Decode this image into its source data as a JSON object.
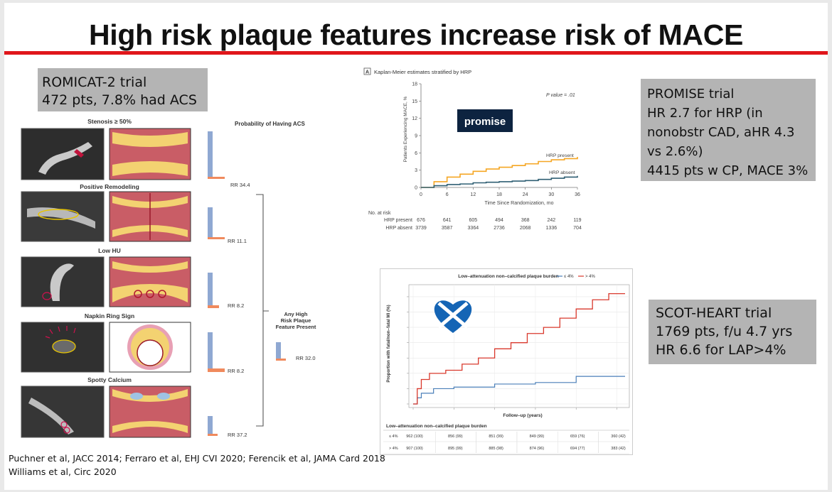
{
  "slide": {
    "title": "High risk plaque features increase risk of MACE",
    "accent_color": "#e0161b"
  },
  "romicat_box": {
    "line1": "ROMICAT-2 trial",
    "line2": "472 pts, 7.8% had ACS"
  },
  "promise_box": {
    "lines": [
      "PROMISE trial",
      "HR 2.7 for HRP (in",
      "nonobstr CAD, aHR 4.3",
      "vs 2.6%)",
      "4415  pts w CP, MACE 3%"
    ]
  },
  "scot_box": {
    "lines": [
      "SCOT-HEART  trial",
      "1769  pts, f/u 4.7 yrs",
      "HR 6.6 for LAP>4%"
    ]
  },
  "romicat_figure": {
    "prob_header": "Probability of Having ACS",
    "rows": [
      {
        "label": "Stenosis ≥ 50%",
        "rr": "RR 34.4"
      },
      {
        "label": "Positive Remodeling",
        "rr": "RR 11.1"
      },
      {
        "label": "Low HU",
        "rr": "RR 8.2"
      },
      {
        "label": "Napkin Ring Sign",
        "rr": "RR 8.2"
      },
      {
        "label": "Spotty Calcium",
        "rr": "RR 37.2"
      }
    ],
    "any_label": [
      "Any High",
      "Risk Plaque",
      "Feature Present"
    ],
    "any_rr": "RR 32.0",
    "bar_color": "#8fa8d2",
    "rr_bar_color": "#f08a5d"
  },
  "promise_chart": {
    "panel": "A",
    "title": "Kaplan-Meier estimates stratified by HRP",
    "ylabel": "Patients Experiencing MACE, %",
    "xlabel": "Time Since Randomization, mo",
    "pvalue": "P value = .01",
    "logo": "promise",
    "yticks": [
      "0",
      "3",
      "6",
      "9",
      "12",
      "15",
      "18"
    ],
    "xticks": [
      "0",
      "6",
      "12",
      "18",
      "24",
      "30",
      "36"
    ],
    "hrp_present_label": "HRP present",
    "hrp_absent_label": "HRP absent",
    "risk_header": "No. at risk",
    "risk_rows": [
      {
        "label": "HRP present",
        "values": [
          "676",
          "641",
          "605",
          "494",
          "368",
          "242",
          "119"
        ]
      },
      {
        "label": "HRP absent",
        "values": [
          "3739",
          "3587",
          "3364",
          "2736",
          "2068",
          "1336",
          "704"
        ]
      }
    ],
    "present_color": "#f5a623",
    "absent_color": "#2f5f73"
  },
  "chart_data": [
    {
      "type": "line",
      "title": "Kaplan-Meier estimates stratified by HRP",
      "xlabel": "Time Since Randomization, mo",
      "ylabel": "Patients Experiencing MACE, %",
      "xlim": [
        0,
        36
      ],
      "ylim": [
        0,
        18
      ],
      "series": [
        {
          "name": "HRP present",
          "x": [
            0,
            3,
            6,
            9,
            12,
            15,
            18,
            21,
            24,
            27,
            30,
            33,
            36
          ],
          "y": [
            0,
            1.0,
            1.8,
            2.3,
            2.8,
            3.2,
            3.5,
            3.8,
            4.1,
            4.5,
            4.8,
            5.0,
            5.3
          ]
        },
        {
          "name": "HRP absent",
          "x": [
            0,
            3,
            6,
            9,
            12,
            15,
            18,
            21,
            24,
            27,
            30,
            33,
            36
          ],
          "y": [
            0,
            0.3,
            0.5,
            0.6,
            0.8,
            0.9,
            1.0,
            1.1,
            1.2,
            1.4,
            1.6,
            1.8,
            2.0
          ]
        }
      ]
    },
    {
      "type": "line",
      "title": "Low-attenuation non-calcified plaque burden",
      "xlabel": "Follow-up (years)",
      "ylabel": "Proportion with fatal/non-fatal MI (%)",
      "xlim": [
        0,
        5.2
      ],
      "ylim": [
        0,
        3.8
      ],
      "series": [
        {
          "name": "≤ 4%",
          "x": [
            0,
            0.1,
            0.2,
            0.5,
            1.0,
            2.0,
            3.0,
            3.8,
            4.0,
            5.2
          ],
          "y": [
            0,
            0.2,
            0.35,
            0.5,
            0.55,
            0.65,
            0.7,
            0.7,
            0.9,
            0.9
          ]
        },
        {
          "name": "> 4%",
          "x": [
            0,
            0.1,
            0.2,
            0.4,
            0.8,
            1.2,
            1.6,
            2.0,
            2.4,
            2.8,
            3.2,
            3.6,
            4.0,
            4.4,
            4.8,
            5.2
          ],
          "y": [
            0,
            0.5,
            0.8,
            1.0,
            1.1,
            1.3,
            1.5,
            1.8,
            2.0,
            2.3,
            2.5,
            2.8,
            3.1,
            3.4,
            3.6,
            3.6
          ]
        }
      ]
    }
  ],
  "scot_chart": {
    "title": "Low–attenuation non–calcified plaque burden",
    "legend_low": "≤ 4%",
    "legend_high": "> 4%",
    "ylabel": "Proportion with fatal/non–fatal MI (%)",
    "xlabel": "Follow–up (years)",
    "table_title": "Low–attenuation non–calcified plaque burden",
    "table_rows": [
      {
        "label": "≤ 4%",
        "values": [
          "962 (100)",
          "856 (99)",
          "851 (99)",
          "849 (99)",
          "659 (76)",
          "360 (42)"
        ]
      },
      {
        "label": "> 4%",
        "values": [
          "907 (100)",
          "895 (99)",
          "885 (98)",
          "874 (96)",
          "694 (77)",
          "383 (42)"
        ]
      }
    ],
    "low_color": "#4a7fb8",
    "high_color": "#d9382c"
  },
  "citation": {
    "line1": "Puchner et al, JACC 2014; Ferraro et al, EHJ CVI 2020; Ferencik et al, JAMA Card 2018",
    "line2": "Williams et al, Circ 2020"
  }
}
